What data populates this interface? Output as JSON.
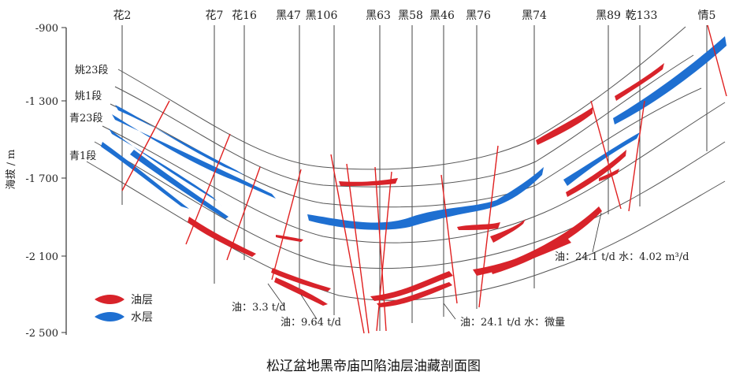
{
  "caption": "松辽盆地黑帝庙凹陷油层油藏剖面图",
  "y_axis": {
    "label": "海拔 / m",
    "ticks": [
      "-900",
      "-1 300",
      "-1 700",
      "-2 100",
      "-2 500"
    ]
  },
  "wells": [
    "花2",
    "花7",
    "花16",
    "黑47",
    "黑106",
    "黑63",
    "黑58",
    "黑46",
    "黑76",
    "黑74",
    "黑89",
    "乾133",
    "情5"
  ],
  "layers": [
    "姚23段",
    "姚1段",
    "青23段",
    "青1段"
  ],
  "legend": {
    "oil": "油层",
    "water": "水层"
  },
  "annotations": {
    "a1": "油：3.3 t/d",
    "a2": "油：9.64 t/d",
    "a3": "油：24.1 t/d  水：微量",
    "a4": "油：24.1 t/d  水：4.02 m³/d"
  },
  "colors": {
    "oil": "#d8232a",
    "water": "#1e6fd1",
    "fault": "#e02020",
    "line": "#555555"
  }
}
